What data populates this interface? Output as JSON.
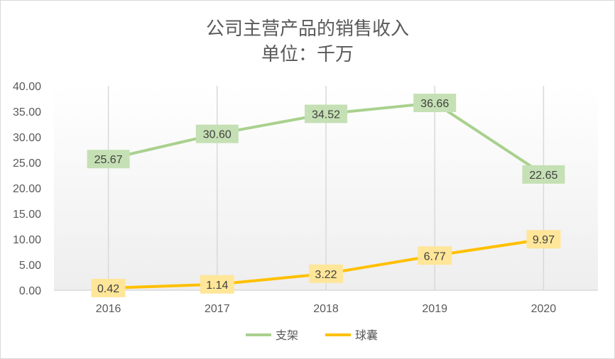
{
  "chart_data": {
    "type": "line",
    "title": "公司主营产品的销售收入",
    "subtitle": "单位：千万",
    "categories": [
      "2016",
      "2017",
      "2018",
      "2019",
      "2020"
    ],
    "series": [
      {
        "name": "支架",
        "values": [
          25.67,
          30.6,
          34.52,
          36.66,
          22.65
        ],
        "labels": [
          "25.67",
          "30.60",
          "34.52",
          "36.66",
          "22.65"
        ],
        "color": "#a9d18e",
        "label_fill": "#c5e0b4"
      },
      {
        "name": "球囊",
        "values": [
          0.42,
          1.14,
          3.22,
          6.77,
          9.97
        ],
        "labels": [
          "0.42",
          "1.14",
          "3.22",
          "6.77",
          "9.97"
        ],
        "color": "#ffc000",
        "label_fill": "#ffe699"
      }
    ],
    "yticks": [
      "0.00",
      "5.00",
      "10.00",
      "15.00",
      "20.00",
      "25.00",
      "30.00",
      "35.00",
      "40.00"
    ],
    "ylim": [
      0,
      40
    ],
    "xlabel": "",
    "ylabel": "",
    "grid": "vertical",
    "legend": "bottom"
  }
}
